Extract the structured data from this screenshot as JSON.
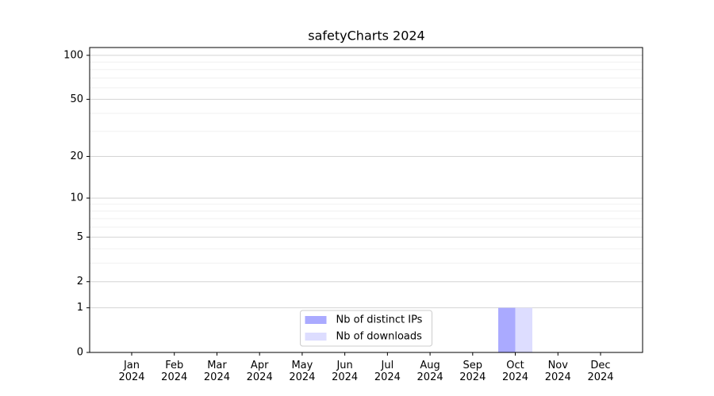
{
  "chart_data": {
    "type": "bar",
    "title": "safetyCharts 2024",
    "categories": [
      "Jan 2024",
      "Feb 2024",
      "Mar 2024",
      "Apr 2024",
      "May 2024",
      "Jun 2024",
      "Jul 2024",
      "Aug 2024",
      "Sep 2024",
      "Oct 2024",
      "Nov 2024",
      "Dec 2024"
    ],
    "series": [
      {
        "name": "Nb of distinct IPs",
        "color": "#aaaaff",
        "values": [
          0,
          0,
          0,
          0,
          0,
          0,
          0,
          0,
          0,
          1,
          0,
          0
        ]
      },
      {
        "name": "Nb of downloads",
        "color": "#ddddff",
        "values": [
          0,
          0,
          0,
          0,
          0,
          0,
          0,
          0,
          0,
          1,
          0,
          0
        ]
      }
    ],
    "yscale": "log1p",
    "ylim": [
      0,
      113
    ],
    "yticks": [
      0,
      1,
      2,
      5,
      10,
      20,
      50,
      100
    ],
    "minor_yticks": [
      3,
      4,
      6,
      7,
      8,
      9,
      30,
      40,
      60,
      70,
      80,
      90
    ],
    "grid": true,
    "legend": "lower center"
  }
}
